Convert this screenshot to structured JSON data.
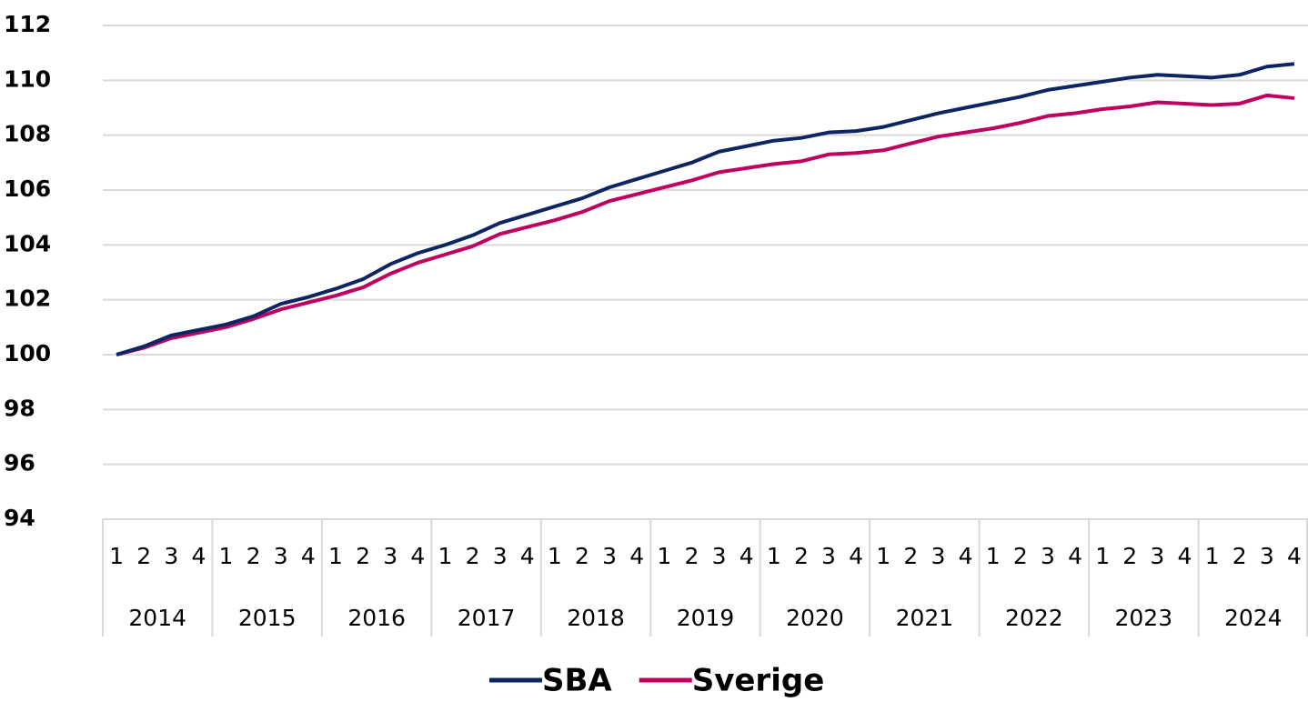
{
  "chart_data": {
    "type": "line",
    "categories": [
      "1",
      "2",
      "3",
      "4",
      "1",
      "2",
      "3",
      "4",
      "1",
      "2",
      "3",
      "4",
      "1",
      "2",
      "3",
      "4",
      "1",
      "2",
      "3",
      "4",
      "1",
      "2",
      "3",
      "4",
      "1",
      "2",
      "3",
      "4",
      "1",
      "2",
      "3",
      "4",
      "1",
      "2",
      "3",
      "4",
      "1",
      "2",
      "3",
      "4",
      "1",
      "2",
      "3",
      "4"
    ],
    "year_groups": [
      "2014",
      "2015",
      "2016",
      "2017",
      "2018",
      "2019",
      "2020",
      "2021",
      "2022",
      "2023",
      "2024"
    ],
    "series": [
      {
        "name": "SBA",
        "color": "#0d2563",
        "values": [
          100,
          100.3,
          100.7,
          100.9,
          101.1,
          101.4,
          101.85,
          102.1,
          102.4,
          102.75,
          103.3,
          103.7,
          104.0,
          104.35,
          104.8,
          105.1,
          105.4,
          105.7,
          106.1,
          106.4,
          106.7,
          107.0,
          107.4,
          107.6,
          107.8,
          107.9,
          108.1,
          108.15,
          108.3,
          108.55,
          108.8,
          109.0,
          109.2,
          109.4,
          109.65,
          109.8,
          109.95,
          110.1,
          110.2,
          110.15,
          110.1,
          110.2,
          110.5,
          110.6
        ]
      },
      {
        "name": "Sverige",
        "color": "#c0005f",
        "values": [
          100,
          100.25,
          100.6,
          100.8,
          101.0,
          101.3,
          101.65,
          101.9,
          102.15,
          102.45,
          102.95,
          103.35,
          103.65,
          103.95,
          104.4,
          104.65,
          104.9,
          105.2,
          105.6,
          105.85,
          106.1,
          106.35,
          106.65,
          106.8,
          106.95,
          107.05,
          107.3,
          107.35,
          107.45,
          107.7,
          107.95,
          108.1,
          108.25,
          108.45,
          108.7,
          108.8,
          108.95,
          109.05,
          109.2,
          109.15,
          109.1,
          109.15,
          109.45,
          109.35
        ]
      }
    ],
    "ylim": [
      94,
      112
    ],
    "yticks": [
      94,
      96,
      98,
      100,
      102,
      104,
      106,
      108,
      110,
      112
    ],
    "grid": true,
    "legend": "bottom"
  }
}
